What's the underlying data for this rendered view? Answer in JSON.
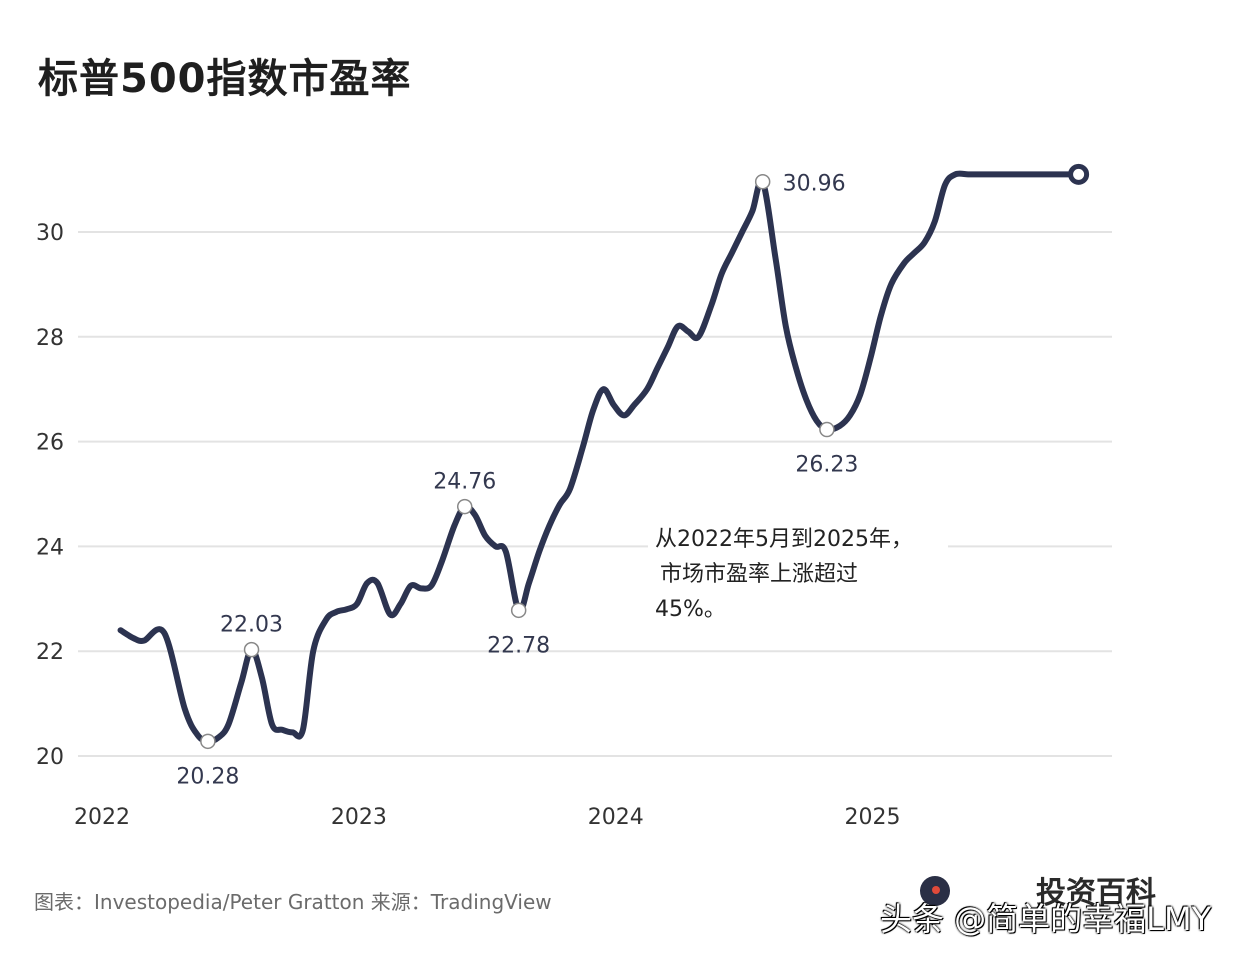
{
  "title": "标普500指数市盈率",
  "source": "图表：Investopedia/Peter Gratton 来源：TradingView",
  "brand": "投资百科",
  "watermark": "头条 @简单的幸福LMY",
  "chart_data": {
    "type": "line",
    "title": "标普500指数市盈率",
    "xlabel": "",
    "ylabel": "",
    "xlim": [
      2022,
      2025.94
    ],
    "ylim": [
      19.5,
      31.3
    ],
    "x_ticks": [
      {
        "v": 2022,
        "label": "2022"
      },
      {
        "v": 2023,
        "label": "2023"
      },
      {
        "v": 2024,
        "label": "2024"
      },
      {
        "v": 2025,
        "label": "2025"
      }
    ],
    "y_ticks": [
      20,
      22,
      24,
      26,
      28,
      30
    ],
    "grid": true,
    "line_color": "#2c3350",
    "series": [
      {
        "x": [
          2022.08,
          2022.13,
          2022.17,
          2022.25,
          2022.33,
          2022.38,
          2022.42,
          2022.46,
          2022.5,
          2022.55,
          2022.59,
          2022.63,
          2022.67,
          2022.71,
          2022.75,
          2022.79,
          2022.83,
          2022.88,
          2022.92,
          2022.96,
          2023.0,
          2023.04,
          2023.08,
          2023.13,
          2023.17,
          2023.21,
          2023.25,
          2023.29,
          2023.33,
          2023.38,
          2023.42,
          2023.46,
          2023.5,
          2023.54,
          2023.58,
          2023.63,
          2023.67,
          2023.71,
          2023.75,
          2023.79,
          2023.83,
          2023.88,
          2023.92,
          2023.96,
          2024.0,
          2024.04,
          2024.08,
          2024.13,
          2024.17,
          2024.21,
          2024.25,
          2024.29,
          2024.33,
          2024.38,
          2024.42,
          2024.46,
          2024.5,
          2024.54,
          2024.58,
          2024.63,
          2024.67,
          2024.71,
          2024.75,
          2024.79,
          2024.83,
          2024.88,
          2024.92,
          2024.96,
          2025.0,
          2025.04,
          2025.08,
          2025.13,
          2025.17,
          2025.21,
          2025.25,
          2025.29,
          2025.33,
          2025.38,
          2025.42,
          2025.46,
          2025.5,
          2025.54,
          2025.58,
          2025.63,
          2025.67,
          2025.71,
          2025.75,
          2025.79,
          2025.81
        ],
        "values": [
          22.4,
          22.25,
          22.2,
          22.35,
          20.9,
          20.4,
          20.28,
          20.35,
          20.6,
          21.4,
          22.03,
          21.5,
          20.6,
          20.5,
          20.45,
          20.5,
          22.0,
          22.6,
          22.75,
          22.8,
          22.9,
          23.3,
          23.3,
          22.7,
          22.9,
          23.25,
          23.2,
          23.25,
          23.7,
          24.4,
          24.76,
          24.6,
          24.2,
          24.0,
          23.9,
          22.78,
          23.3,
          23.9,
          24.4,
          24.8,
          25.1,
          25.9,
          26.6,
          27.0,
          26.7,
          26.5,
          26.7,
          27.0,
          27.4,
          27.8,
          28.2,
          28.1,
          28.0,
          28.6,
          29.2,
          29.6,
          30.0,
          30.4,
          30.96,
          29.5,
          28.2,
          27.4,
          26.8,
          26.4,
          26.23,
          26.3,
          26.5,
          26.9,
          27.6,
          28.4,
          29.0,
          29.4,
          29.6,
          29.8,
          30.2,
          30.9,
          31.1,
          31.1,
          31.1,
          31.1,
          31.1,
          31.1,
          31.1,
          31.1,
          31.1,
          31.1,
          31.1,
          31.1,
          31.1
        ]
      }
    ],
    "data_labels": [
      {
        "x": 2022.42,
        "y": 20.28,
        "label": "20.28",
        "pos": "below"
      },
      {
        "x": 2022.59,
        "y": 22.03,
        "label": "22.03",
        "pos": "above"
      },
      {
        "x": 2023.42,
        "y": 24.76,
        "label": "24.76",
        "pos": "above"
      },
      {
        "x": 2023.63,
        "y": 22.78,
        "label": "22.78",
        "pos": "below"
      },
      {
        "x": 2024.58,
        "y": 30.96,
        "label": "30.96",
        "pos": "right"
      },
      {
        "x": 2024.83,
        "y": 26.23,
        "label": "26.23",
        "pos": "below"
      }
    ],
    "annotation": [
      "从2022年5月到2025年，",
      "市场市盈率上涨超过",
      "45%。"
    ]
  }
}
